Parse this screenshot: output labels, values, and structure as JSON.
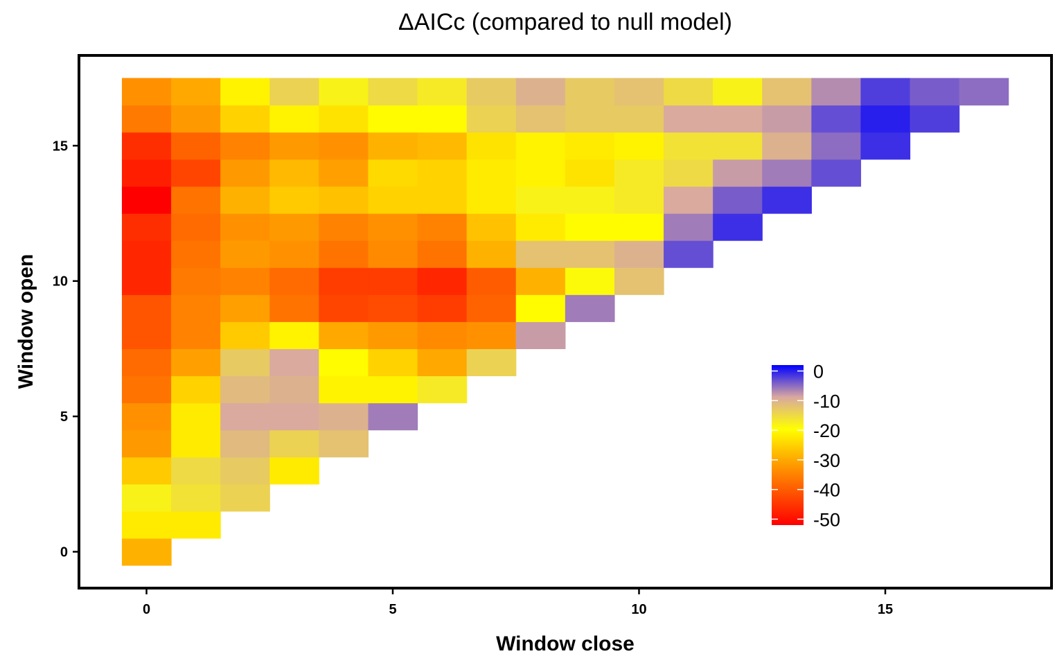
{
  "chart_data": {
    "type": "heatmap",
    "title": "ΔAICc (compared to null model)",
    "xlabel": "Window close",
    "ylabel": "Window open",
    "x_ticks": [
      0,
      5,
      10,
      15
    ],
    "y_ticks": [
      0,
      5,
      10,
      15
    ],
    "xlim": [
      -0.5,
      17.5
    ],
    "ylim": [
      -0.5,
      17.5
    ],
    "grid": false,
    "legend": {
      "position": "bottom-right",
      "ticks": [
        0,
        -10,
        -20,
        -30,
        -40,
        -50
      ],
      "range": [
        -52,
        2
      ]
    },
    "color_scale": [
      "#ff0000",
      "#ffa500",
      "#ffff00",
      "#d8a8a0",
      "#0000ff"
    ],
    "cells": {
      "0": [
        -29
      ],
      "1": [
        -22,
        -22
      ],
      "2": [
        -18,
        -16,
        -14
      ],
      "3": [
        -26,
        -15,
        -13,
        -22
      ],
      "4": [
        -32,
        -22,
        -11,
        -14,
        -12
      ],
      "5": [
        -33,
        -22,
        -9,
        -9,
        -10,
        -6
      ],
      "6": [
        -37,
        -25,
        -11,
        -10,
        -21,
        -21,
        -17
      ],
      "7": [
        -38,
        -31,
        -13,
        -9,
        -20,
        -25,
        -30,
        -14
      ],
      "8": [
        -41,
        -35,
        -26,
        -21,
        -30,
        -32,
        -34,
        -33,
        -8
      ],
      "9": [
        -41,
        -35,
        -31,
        -37,
        -43,
        -42,
        -44,
        -39,
        -20,
        -6
      ],
      "10": [
        -47,
        -36,
        -35,
        -38,
        -44,
        -44,
        -47,
        -40,
        -29,
        -19,
        -12
      ],
      "11": [
        -47,
        -37,
        -32,
        -33,
        -37,
        -34,
        -37,
        -29,
        -12,
        -12,
        -10,
        -3
      ],
      "12": [
        -46,
        -38,
        -33,
        -32,
        -35,
        -33,
        -35,
        -27,
        -22,
        -20,
        -20,
        -6,
        -1
      ],
      "13": [
        -52,
        -37,
        -29,
        -26,
        -27,
        -25,
        -25,
        -22,
        -18,
        -18,
        -17,
        -9,
        -4,
        -1
      ],
      "14": [
        -48,
        -43,
        -32,
        -28,
        -31,
        -24,
        -25,
        -22,
        -21,
        -23,
        -17,
        -15,
        -8,
        -6,
        -3
      ],
      "15": [
        -46,
        -39,
        -35,
        -32,
        -33,
        -29,
        -28,
        -23,
        -21,
        -22,
        -21,
        -16,
        -16,
        -10,
        -5,
        -1
      ],
      "16": [
        -36,
        -32,
        -25,
        -21,
        -23,
        -20,
        -20,
        -14,
        -12,
        -13,
        -13,
        -9,
        -9,
        -8,
        -3,
        0,
        -2
      ],
      "17": [
        -33,
        -30,
        -21,
        -14,
        -18,
        -15,
        -17,
        -13,
        -10,
        -13,
        -12,
        -15,
        -18,
        -12,
        -7,
        -2,
        -4,
        -5
      ]
    }
  }
}
